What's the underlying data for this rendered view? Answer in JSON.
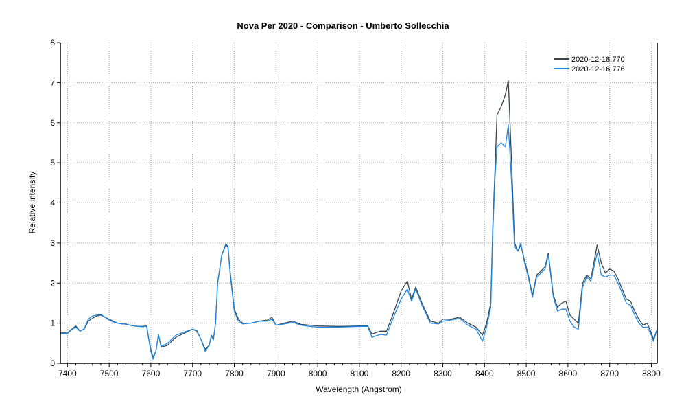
{
  "chart_data": {
    "type": "line",
    "title": "Nova Per 2020 - Comparison - Umberto Sollecchia",
    "xlabel": "Wavelength (Angstrom)",
    "ylabel": "Relative intensity",
    "xlim": [
      7383,
      8814
    ],
    "ylim": [
      0,
      8
    ],
    "xticks": [
      7400,
      7500,
      7600,
      7700,
      7800,
      7900,
      8000,
      8100,
      8200,
      8300,
      8400,
      8500,
      8600,
      8700,
      8800
    ],
    "yticks": [
      0,
      1,
      2,
      3,
      4,
      5,
      6,
      7,
      8
    ],
    "grid": true,
    "legend_position": "top-right",
    "series": [
      {
        "name": "2020-12-18.770",
        "color": "#37474f",
        "x": [
          7383,
          7390,
          7400,
          7410,
          7420,
          7430,
          7440,
          7450,
          7460,
          7470,
          7480,
          7490,
          7500,
          7510,
          7520,
          7530,
          7540,
          7550,
          7560,
          7570,
          7580,
          7590,
          7595,
          7600,
          7605,
          7612,
          7618,
          7625,
          7640,
          7660,
          7680,
          7700,
          7710,
          7720,
          7730,
          7740,
          7745,
          7750,
          7755,
          7760,
          7770,
          7780,
          7785,
          7790,
          7800,
          7810,
          7820,
          7840,
          7860,
          7880,
          7890,
          7900,
          7920,
          7940,
          7960,
          7980,
          8000,
          8050,
          8100,
          8120,
          8130,
          8150,
          8165,
          8180,
          8200,
          8215,
          8225,
          8235,
          8250,
          8270,
          8290,
          8300,
          8320,
          8340,
          8360,
          8380,
          8395,
          8405,
          8415,
          8420,
          8425,
          8430,
          8440,
          8450,
          8457,
          8465,
          8472,
          8480,
          8487,
          8495,
          8505,
          8515,
          8525,
          8535,
          8545,
          8553,
          8565,
          8575,
          8585,
          8595,
          8605,
          8615,
          8625,
          8635,
          8645,
          8655,
          8670,
          8680,
          8690,
          8700,
          8710,
          8720,
          8730,
          8740,
          8750,
          8760,
          8770,
          8780,
          8790,
          8800,
          8805,
          8814
        ],
        "y": [
          0.78,
          0.76,
          0.75,
          0.85,
          0.93,
          0.8,
          0.85,
          1.05,
          1.12,
          1.18,
          1.2,
          1.15,
          1.1,
          1.05,
          1.0,
          1.0,
          0.97,
          0.95,
          0.93,
          0.92,
          0.92,
          0.93,
          0.6,
          0.35,
          0.15,
          0.3,
          0.7,
          0.4,
          0.45,
          0.65,
          0.75,
          0.85,
          0.8,
          0.6,
          0.35,
          0.45,
          0.7,
          0.6,
          1.0,
          2.0,
          2.7,
          2.98,
          2.9,
          2.3,
          1.35,
          1.1,
          1.0,
          1.0,
          1.05,
          1.08,
          1.15,
          0.95,
          1.0,
          1.05,
          0.97,
          0.95,
          0.93,
          0.92,
          0.93,
          0.93,
          0.73,
          0.8,
          0.8,
          1.2,
          1.8,
          2.05,
          1.6,
          1.9,
          1.5,
          1.05,
          1.0,
          1.1,
          1.1,
          1.15,
          1.0,
          0.9,
          0.7,
          1.0,
          1.5,
          3.5,
          4.8,
          6.2,
          6.4,
          6.7,
          7.05,
          5.0,
          3.0,
          2.8,
          2.95,
          2.6,
          2.2,
          1.7,
          2.2,
          2.3,
          2.4,
          2.75,
          1.7,
          1.4,
          1.5,
          1.55,
          1.2,
          1.1,
          1.0,
          2.0,
          2.2,
          2.1,
          2.95,
          2.5,
          2.25,
          2.35,
          2.3,
          2.1,
          1.85,
          1.6,
          1.55,
          1.3,
          1.1,
          0.95,
          1.0,
          0.75,
          0.6,
          0.85
        ]
      },
      {
        "name": "2020-12-16.776",
        "color": "#1e88e5",
        "x": [
          7383,
          7390,
          7400,
          7410,
          7420,
          7430,
          7440,
          7450,
          7460,
          7470,
          7480,
          7490,
          7500,
          7510,
          7520,
          7530,
          7540,
          7550,
          7560,
          7570,
          7580,
          7590,
          7595,
          7600,
          7605,
          7612,
          7618,
          7625,
          7640,
          7660,
          7680,
          7700,
          7710,
          7720,
          7730,
          7740,
          7745,
          7750,
          7755,
          7760,
          7770,
          7780,
          7785,
          7790,
          7800,
          7810,
          7820,
          7840,
          7860,
          7880,
          7890,
          7900,
          7920,
          7940,
          7960,
          7980,
          8000,
          8050,
          8100,
          8120,
          8130,
          8150,
          8165,
          8180,
          8200,
          8215,
          8225,
          8235,
          8250,
          8270,
          8290,
          8300,
          8320,
          8340,
          8360,
          8380,
          8395,
          8405,
          8415,
          8420,
          8425,
          8430,
          8440,
          8450,
          8457,
          8465,
          8472,
          8480,
          8487,
          8495,
          8505,
          8515,
          8525,
          8535,
          8545,
          8553,
          8565,
          8575,
          8585,
          8595,
          8605,
          8615,
          8625,
          8635,
          8645,
          8655,
          8670,
          8680,
          8690,
          8700,
          8710,
          8720,
          8730,
          8740,
          8750,
          8760,
          8770,
          8780,
          8790,
          8800,
          8805,
          8814
        ],
        "y": [
          0.75,
          0.74,
          0.74,
          0.84,
          0.9,
          0.8,
          0.86,
          1.1,
          1.18,
          1.2,
          1.22,
          1.15,
          1.08,
          1.03,
          1.0,
          0.98,
          0.98,
          0.95,
          0.93,
          0.92,
          0.91,
          0.92,
          0.6,
          0.3,
          0.1,
          0.3,
          0.72,
          0.42,
          0.5,
          0.7,
          0.78,
          0.85,
          0.82,
          0.6,
          0.3,
          0.45,
          0.68,
          0.58,
          1.0,
          2.0,
          2.7,
          2.95,
          2.88,
          2.25,
          1.3,
          1.05,
          0.98,
          1.0,
          1.05,
          1.05,
          1.1,
          0.95,
          0.98,
          1.02,
          0.95,
          0.92,
          0.9,
          0.9,
          0.92,
          0.92,
          0.65,
          0.72,
          0.7,
          1.1,
          1.6,
          1.85,
          1.55,
          1.85,
          1.45,
          1.0,
          0.98,
          1.05,
          1.08,
          1.12,
          0.95,
          0.85,
          0.55,
          0.9,
          1.4,
          3.3,
          4.6,
          5.4,
          5.5,
          5.4,
          5.95,
          4.5,
          2.9,
          2.8,
          3.0,
          2.55,
          2.15,
          1.65,
          2.15,
          2.25,
          2.35,
          2.7,
          1.65,
          1.3,
          1.35,
          1.35,
          1.05,
          0.9,
          0.85,
          1.9,
          2.15,
          2.05,
          2.75,
          2.2,
          2.15,
          2.2,
          2.2,
          2.0,
          1.75,
          1.5,
          1.45,
          1.2,
          1.0,
          0.9,
          0.9,
          0.7,
          0.55,
          0.85
        ]
      }
    ]
  }
}
